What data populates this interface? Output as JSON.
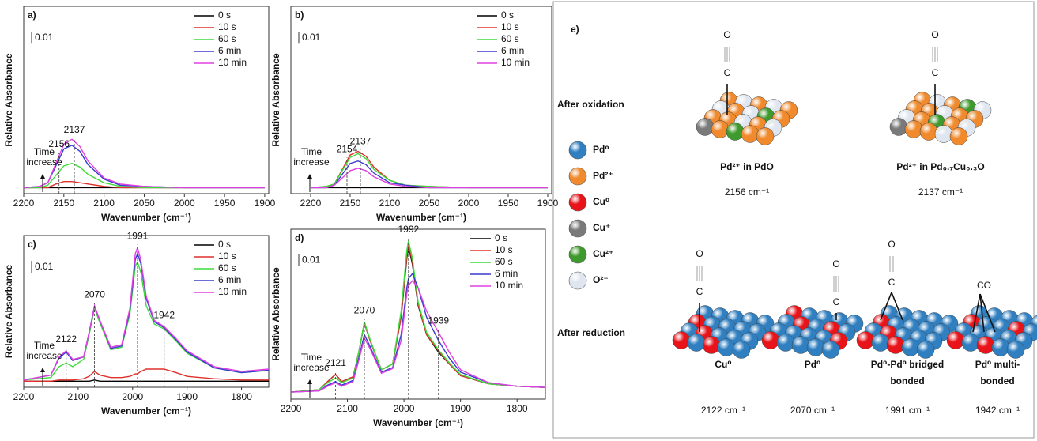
{
  "chart_data": [
    {
      "type": "line",
      "label": "a)",
      "ylabel": "Relative Absorbance",
      "xlabel": "Wavenumber (cm⁻¹)",
      "xlim": [
        2200,
        1895
      ],
      "xticks": [
        2200,
        2150,
        2100,
        2050,
        2000,
        1950,
        1900
      ],
      "ylim": [
        -0.005,
        0.15
      ],
      "scale_bar": 0.01,
      "legend": "upper right",
      "peaks": [
        2156,
        2137
      ],
      "annotation": [
        "Time",
        "increase"
      ],
      "x": [
        2200,
        2180,
        2170,
        2160,
        2150,
        2140,
        2130,
        2120,
        2100,
        2080,
        2050,
        2000,
        1950,
        1900
      ],
      "series": [
        {
          "name": "0 s",
          "color": "#000000",
          "values": [
            0,
            0,
            0,
            0,
            0,
            0,
            0,
            0,
            0,
            0,
            0,
            0,
            0,
            0
          ]
        },
        {
          "name": "10 s",
          "color": "#e0302a",
          "values": [
            0,
            0,
            0,
            0.003,
            0.005,
            0.005,
            0.004,
            0.003,
            0.001,
            0,
            0,
            0,
            0,
            0
          ]
        },
        {
          "name": "60 s",
          "color": "#3ddc3a",
          "values": [
            0,
            0,
            0.002,
            0.01,
            0.018,
            0.02,
            0.017,
            0.011,
            0.004,
            0.001,
            0,
            0,
            0,
            0
          ]
        },
        {
          "name": "6 min",
          "color": "#3a3ad0",
          "values": [
            0,
            0.001,
            0.004,
            0.018,
            0.032,
            0.035,
            0.03,
            0.019,
            0.007,
            0.002,
            0.001,
            0,
            0,
            0
          ]
        },
        {
          "name": "10 min",
          "color": "#e040e0",
          "values": [
            0,
            0.001,
            0.004,
            0.02,
            0.036,
            0.04,
            0.034,
            0.022,
            0.008,
            0.003,
            0.001,
            0,
            0,
            0
          ]
        }
      ]
    },
    {
      "type": "line",
      "label": "b)",
      "ylabel": "Relative Absorbance",
      "xlabel": "Wavenumber (cm⁻¹)",
      "xlim": [
        2225,
        1895
      ],
      "xticks": [
        2200,
        2150,
        2100,
        2050,
        2000,
        1950,
        1900
      ],
      "ylim": [
        -0.005,
        0.15
      ],
      "scale_bar": 0.01,
      "legend": "upper right",
      "peaks": [
        2154,
        2137
      ],
      "annotation": [
        "Time",
        "increase"
      ],
      "x": [
        2200,
        2180,
        2170,
        2160,
        2150,
        2140,
        2130,
        2120,
        2100,
        2080,
        2050,
        2000,
        1950,
        1900
      ],
      "series": [
        {
          "name": "0 s",
          "color": "#000000",
          "values": [
            0,
            0,
            0,
            0,
            0,
            0,
            0,
            0,
            0,
            0,
            0,
            0,
            0,
            0
          ]
        },
        {
          "name": "10 s",
          "color": "#e0302a",
          "values": [
            0,
            0.001,
            0.003,
            0.015,
            0.027,
            0.03,
            0.026,
            0.017,
            0.006,
            0.002,
            0.001,
            0,
            0,
            0
          ]
        },
        {
          "name": "60 s",
          "color": "#3ddc3a",
          "values": [
            0,
            0.001,
            0.003,
            0.014,
            0.025,
            0.028,
            0.024,
            0.015,
            0.006,
            0.002,
            0.001,
            0,
            0,
            0
          ]
        },
        {
          "name": "6 min",
          "color": "#3a3ad0",
          "values": [
            0,
            0,
            0.002,
            0.011,
            0.02,
            0.022,
            0.019,
            0.012,
            0.004,
            0.002,
            0,
            0,
            0,
            0
          ]
        },
        {
          "name": "10 min",
          "color": "#e040e0",
          "values": [
            0,
            0,
            0.002,
            0.008,
            0.014,
            0.016,
            0.014,
            0.009,
            0.003,
            0.001,
            0,
            0,
            0,
            0
          ]
        }
      ]
    },
    {
      "type": "line",
      "label": "c)",
      "ylabel": "Relative Absorbance",
      "xlabel": "Wavenumber (cm⁻¹)",
      "xlim": [
        2200,
        1750
      ],
      "xticks": [
        2200,
        2100,
        2000,
        1900,
        1800
      ],
      "ylim": [
        -0.005,
        0.12
      ],
      "scale_bar": 0.01,
      "legend": "upper right",
      "peaks": [
        2122,
        2070,
        1991,
        1942
      ],
      "annotation": [
        "Time",
        "increase"
      ],
      "x": [
        2200,
        2150,
        2135,
        2122,
        2110,
        2090,
        2080,
        2070,
        2060,
        2040,
        2020,
        2005,
        1995,
        1991,
        1985,
        1975,
        1960,
        1942,
        1920,
        1900,
        1850,
        1800,
        1750
      ],
      "series": [
        {
          "name": "0 s",
          "color": "#000000",
          "values": [
            0,
            0,
            0,
            0,
            0,
            0,
            0,
            0.001,
            0,
            0,
            0,
            0,
            0,
            0,
            0,
            0,
            0,
            0,
            0,
            0,
            0,
            0,
            0
          ]
        },
        {
          "name": "10 s",
          "color": "#e0302a",
          "values": [
            0,
            0,
            0.001,
            0.001,
            0.001,
            0.002,
            0.004,
            0.008,
            0.005,
            0.003,
            0.003,
            0.004,
            0.006,
            0.006,
            0.008,
            0.01,
            0.01,
            0.01,
            0.007,
            0.004,
            0.002,
            0.001,
            0.001
          ]
        },
        {
          "name": "60 s",
          "color": "#3ddc3a",
          "values": [
            0.001,
            0.003,
            0.012,
            0.015,
            0.012,
            0.018,
            0.038,
            0.06,
            0.048,
            0.026,
            0.028,
            0.055,
            0.095,
            0.098,
            0.09,
            0.062,
            0.047,
            0.043,
            0.033,
            0.023,
            0.011,
            0.007,
            0.009
          ]
        },
        {
          "name": "6 min",
          "color": "#3a3ad0",
          "values": [
            0.001,
            0.005,
            0.019,
            0.024,
            0.017,
            0.02,
            0.04,
            0.062,
            0.05,
            0.027,
            0.029,
            0.058,
            0.1,
            0.105,
            0.097,
            0.068,
            0.049,
            0.044,
            0.034,
            0.024,
            0.011,
            0.007,
            0.009
          ]
        },
        {
          "name": "10 min",
          "color": "#e040e0",
          "values": [
            0.001,
            0.005,
            0.02,
            0.025,
            0.018,
            0.02,
            0.04,
            0.062,
            0.05,
            0.028,
            0.03,
            0.06,
            0.105,
            0.11,
            0.1,
            0.07,
            0.05,
            0.045,
            0.035,
            0.025,
            0.012,
            0.008,
            0.01
          ]
        }
      ]
    },
    {
      "type": "line",
      "label": "d)",
      "ylabel": "Relative Absorbance",
      "xlabel": "Wavenumber (cm⁻¹)",
      "xlim": [
        2200,
        1750
      ],
      "xticks": [
        2200,
        2100,
        2000,
        1900,
        1800
      ],
      "ylim": [
        -0.005,
        0.14
      ],
      "scale_bar": 0.01,
      "legend": "upper right",
      "peaks": [
        2121,
        2070,
        1992,
        1939
      ],
      "annotation": [
        "Time",
        "increase"
      ],
      "x": [
        2200,
        2150,
        2135,
        2121,
        2110,
        2090,
        2080,
        2070,
        2060,
        2040,
        2020,
        2005,
        1995,
        1992,
        1985,
        1975,
        1960,
        1939,
        1920,
        1900,
        1850,
        1800,
        1750
      ],
      "series": [
        {
          "name": "0 s",
          "color": "#000000",
          "values": [
            0.001,
            0.003,
            0.01,
            0.016,
            0.01,
            0.014,
            0.035,
            0.06,
            0.045,
            0.02,
            0.025,
            0.065,
            0.115,
            0.125,
            0.11,
            0.075,
            0.05,
            0.035,
            0.025,
            0.015,
            0.008,
            0.006,
            0.005
          ]
        },
        {
          "name": "10 s",
          "color": "#e0302a",
          "values": [
            0.001,
            0.003,
            0.01,
            0.016,
            0.01,
            0.014,
            0.035,
            0.06,
            0.045,
            0.02,
            0.025,
            0.065,
            0.117,
            0.127,
            0.112,
            0.076,
            0.05,
            0.036,
            0.025,
            0.015,
            0.008,
            0.006,
            0.005
          ]
        },
        {
          "name": "60 s",
          "color": "#3ddc3a",
          "values": [
            0.001,
            0.003,
            0.009,
            0.013,
            0.009,
            0.013,
            0.035,
            0.061,
            0.046,
            0.02,
            0.025,
            0.07,
            0.122,
            0.13,
            0.115,
            0.078,
            0.052,
            0.037,
            0.026,
            0.016,
            0.008,
            0.006,
            0.005
          ]
        },
        {
          "name": "6 min",
          "color": "#3a3ad0",
          "values": [
            0.001,
            0.002,
            0.007,
            0.01,
            0.007,
            0.011,
            0.03,
            0.05,
            0.04,
            0.018,
            0.022,
            0.05,
            0.09,
            0.098,
            0.102,
            0.09,
            0.065,
            0.045,
            0.03,
            0.018,
            0.009,
            0.006,
            0.005
          ]
        },
        {
          "name": "10 min",
          "color": "#e040e0",
          "values": [
            0.001,
            0.002,
            0.006,
            0.009,
            0.006,
            0.01,
            0.028,
            0.047,
            0.038,
            0.017,
            0.021,
            0.045,
            0.085,
            0.092,
            0.096,
            0.09,
            0.07,
            0.052,
            0.035,
            0.02,
            0.009,
            0.006,
            0.005
          ]
        }
      ]
    }
  ],
  "scheme": {
    "label": "e)",
    "rows": [
      "After oxidation",
      "After reduction"
    ],
    "species": [
      {
        "name": "Pd⁰",
        "color": "#2f7fc1"
      },
      {
        "name": "Pd²⁺",
        "color": "#f08a2c"
      },
      {
        "name": "Cu⁰",
        "color": "#e8141a"
      },
      {
        "name": "Cu⁺",
        "color": "#7a7a7a"
      },
      {
        "name": "Cu²⁺",
        "color": "#3f9a2e"
      },
      {
        "name": "O²⁻",
        "color": "#dfe6f0"
      }
    ],
    "atoms": {
      "O": "O",
      "C": "C",
      "CO": "CO"
    },
    "sites": [
      {
        "caption": [
          "Pd²⁺ in PdO"
        ],
        "band": "2156 cm⁻¹"
      },
      {
        "caption": [
          "Pd²⁺ in Pd₀.₇Cu₀.₃O"
        ],
        "band": "2137 cm⁻¹"
      },
      {
        "caption": [
          "Cu⁰"
        ],
        "band": "2122 cm⁻¹"
      },
      {
        "caption": [
          "Pd⁰"
        ],
        "band": "2070 cm⁻¹"
      },
      {
        "caption": [
          "Pd⁰-Pd⁰ bridged",
          "bonded"
        ],
        "band": "1991 cm⁻¹"
      },
      {
        "caption": [
          "Pd⁰ multi-",
          "bonded"
        ],
        "band": "1942 cm⁻¹"
      }
    ]
  }
}
